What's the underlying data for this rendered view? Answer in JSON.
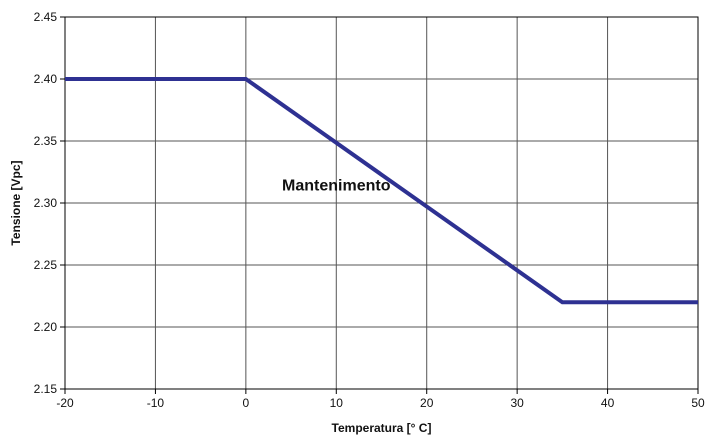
{
  "chart_data": {
    "type": "line",
    "title": "",
    "xlabel": "Temperatura [° C]",
    "ylabel": "Tensione [Vpc]",
    "xlim": [
      -20,
      50
    ],
    "ylim": [
      2.15,
      2.45
    ],
    "x_ticks": [
      "-20",
      "-10",
      "0",
      "10",
      "20",
      "30",
      "40",
      "50"
    ],
    "y_ticks": [
      "2.45",
      "2.40",
      "2.35",
      "2.30",
      "2.25",
      "2.20",
      "2.15"
    ],
    "grid": true,
    "legend": "none",
    "series": [
      {
        "x": [
          -20,
          0,
          35,
          50
        ],
        "y": [
          2.4,
          2.4,
          2.22,
          2.22
        ],
        "color": "#2e3192"
      }
    ],
    "annotations": [
      {
        "text": "Mantenimento",
        "x": 10,
        "y": 2.31
      }
    ]
  }
}
